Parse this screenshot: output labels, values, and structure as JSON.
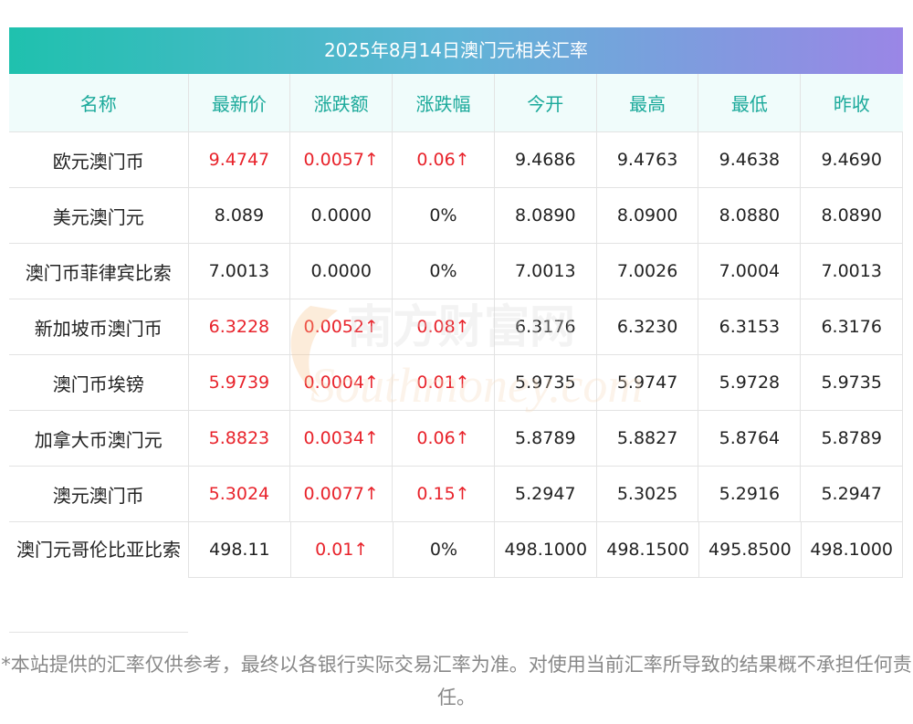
{
  "title": "2025年8月14日澳门元相关汇率",
  "headers": [
    "名称",
    "最新价",
    "涨跌额",
    "涨跌幅",
    "今开",
    "最高",
    "最低",
    "昨收"
  ],
  "rows": [
    {
      "name": "欧元澳门币",
      "latest": "9.4747",
      "change": "0.0057↑",
      "pct": "0.06↑",
      "open": "9.4686",
      "high": "9.4763",
      "low": "9.4638",
      "prev": "9.4690",
      "up": true
    },
    {
      "name": "美元澳门元",
      "latest": "8.089",
      "change": "0.0000",
      "pct": "0%",
      "open": "8.0890",
      "high": "8.0900",
      "low": "8.0880",
      "prev": "8.0890",
      "up": false
    },
    {
      "name": "澳门币菲律宾比索",
      "latest": "7.0013",
      "change": "0.0000",
      "pct": "0%",
      "open": "7.0013",
      "high": "7.0026",
      "low": "7.0004",
      "prev": "7.0013",
      "up": false
    },
    {
      "name": "新加坡币澳门币",
      "latest": "6.3228",
      "change": "0.0052↑",
      "pct": "0.08↑",
      "open": "6.3176",
      "high": "6.3230",
      "low": "6.3153",
      "prev": "6.3176",
      "up": true
    },
    {
      "name": "澳门币埃镑",
      "latest": "5.9739",
      "change": "0.0004↑",
      "pct": "0.01↑",
      "open": "5.9735",
      "high": "5.9747",
      "low": "5.9728",
      "prev": "5.9735",
      "up": true
    },
    {
      "name": "加拿大币澳门元",
      "latest": "5.8823",
      "change": "0.0034↑",
      "pct": "0.06↑",
      "open": "5.8789",
      "high": "5.8827",
      "low": "5.8764",
      "prev": "5.8789",
      "up": true
    },
    {
      "name": "澳元澳门币",
      "latest": "5.3024",
      "change": "0.0077↑",
      "pct": "0.15↑",
      "open": "5.2947",
      "high": "5.3025",
      "low": "5.2916",
      "prev": "5.2947",
      "up": true
    },
    {
      "name": "澳门元哥伦比亚比索",
      "latest": "498.11",
      "change": "0.01↑",
      "pct": "0%",
      "open": "498.1000",
      "high": "498.1500",
      "low": "495.8500",
      "prev": "498.1000",
      "up": false,
      "change_up": true
    }
  ],
  "watermark": {
    "cn": "南方财富网",
    "en": "Southmoney.com"
  },
  "footnote": "*本站提供的汇率仅供参考，最终以各银行实际交易汇率为准。对使用当前汇率所导致的结果概不承担任何责任。",
  "colors": {
    "up": "#e8232b",
    "header_text": "#1aa99a",
    "title_gradient": [
      "#1fc1ae",
      "#9a86e6"
    ]
  }
}
